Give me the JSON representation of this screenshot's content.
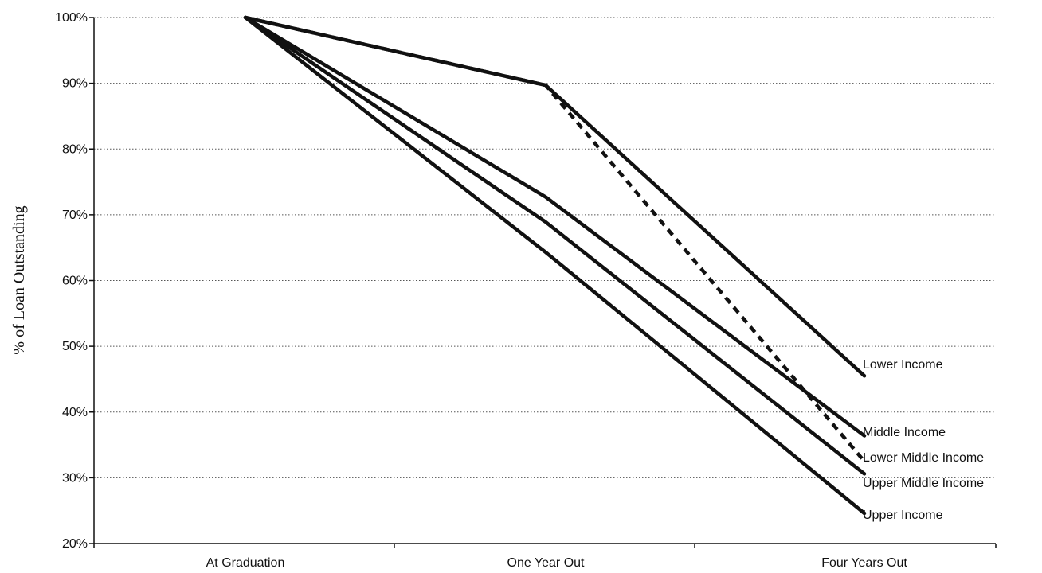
{
  "chart_data": {
    "type": "line",
    "title": "",
    "xlabel": "",
    "ylabel": "% of Loan Outstanding",
    "categories": [
      "At  Graduation",
      "One Year Out",
      "Four Years Out"
    ],
    "ylim": [
      20,
      100
    ],
    "yticks": [
      100,
      90,
      80,
      70,
      60,
      50,
      40,
      30,
      20
    ],
    "ytick_labels": [
      "100%",
      "90%",
      "80%",
      "70%",
      "60%",
      "50%",
      "40%",
      "30%",
      "20%"
    ],
    "grid": true,
    "legend": "direct labels at right",
    "series": [
      {
        "name": "Lower Income",
        "values": [
          100,
          89.7,
          45.5
        ],
        "style": "solid"
      },
      {
        "name": "Middle Income",
        "values": [
          100,
          72.7,
          36.4
        ],
        "style": "solid"
      },
      {
        "name": "Lower Middle Income",
        "values": [
          100,
          89.7,
          32.5
        ],
        "style": "dashed"
      },
      {
        "name": "Upper Middle Income",
        "values": [
          100,
          68.9,
          30.6
        ],
        "style": "solid"
      },
      {
        "name": "Upper Income",
        "values": [
          100,
          64.3,
          24.6
        ],
        "style": "solid"
      }
    ]
  },
  "colors": {
    "line": "#111111",
    "grid": "#555555",
    "background": "#ffffff"
  }
}
